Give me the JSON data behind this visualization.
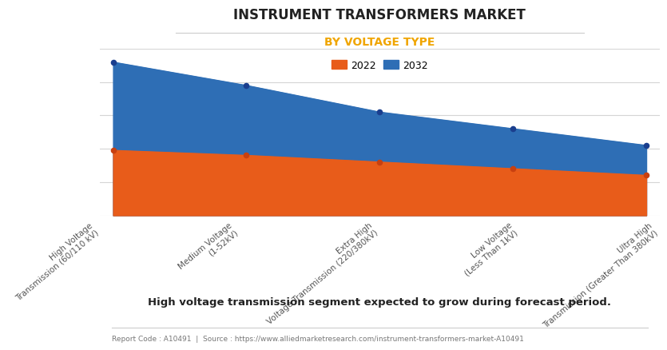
{
  "title": "INSTRUMENT TRANSFORMERS MARKET",
  "subtitle": "BY VOLTAGE TYPE",
  "subtitle_color": "#f0a500",
  "categories": [
    "High Voltage\nTransmission (60/110 kV)",
    "Medium Voltage\n(1-52kV)",
    "Extra High\nVoltage Transmission (220/380kV)",
    "Low Voltage\n(Less Than 1kV)",
    "Ultra High\nTransmission (Greater Than 380kV)"
  ],
  "values_2022": [
    3.9,
    3.6,
    3.2,
    2.8,
    2.4
  ],
  "values_2032": [
    9.2,
    7.8,
    6.2,
    5.2,
    4.2
  ],
  "color_2022": "#e85c1a",
  "color_2032": "#2e6eb5",
  "marker_color_2022": "#c84010",
  "marker_color_2032": "#1a3e8e",
  "ylim": [
    0,
    10
  ],
  "background_color": "#ffffff",
  "grid_color": "#d5d5d5",
  "footer_text": "Report Code : A10491  |  Source : https://www.alliedmarketresearch.com/instrument-transformers-market-A10491",
  "caption": "High voltage transmission segment expected to grow during forecast period.",
  "legend_2022": "2022",
  "legend_2032": "2032"
}
